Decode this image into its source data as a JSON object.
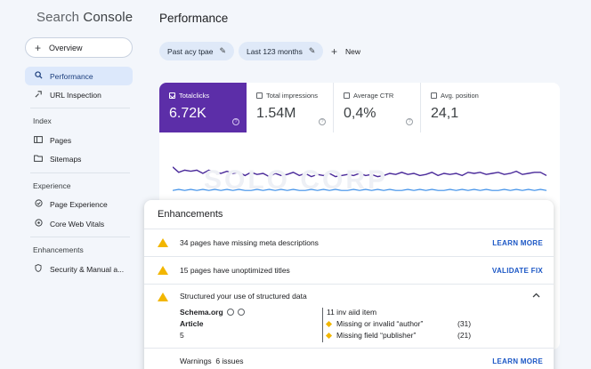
{
  "app": {
    "brand_part1": "Search",
    "brand_part2": " Console",
    "page_title": "Performance"
  },
  "sidebar": {
    "overview_label": "Overview",
    "items": [
      {
        "label": "Performance",
        "icon": "search-icon",
        "active": true
      },
      {
        "label": "URL Inspection",
        "icon": "url-inspection-icon",
        "active": false
      }
    ],
    "index_label": "Index",
    "index_items": [
      {
        "label": "Pages",
        "icon": "pages-icon"
      },
      {
        "label": "Sitemaps",
        "icon": "sitemaps-icon"
      }
    ],
    "experience_label": "Experience",
    "experience_items": [
      {
        "label": "Page Experience",
        "icon": "page-experience-icon"
      },
      {
        "label": "Core Web Vitals",
        "icon": "core-web-vitals-icon"
      }
    ],
    "enhancements_label": "Enhancements",
    "enhancements_items": [
      {
        "label": "Security & Manual a...",
        "icon": "shield-icon"
      }
    ]
  },
  "filters": {
    "chip1": "Past acy tpae",
    "chip2": "Last 123 months",
    "new_label": "New"
  },
  "metrics": [
    {
      "label": "Totalclicks",
      "value": "6.72K",
      "selected": true
    },
    {
      "label": "Total impressions",
      "value": "1.54M",
      "selected": false
    },
    {
      "label": "Average CTR",
      "value": "0,4%",
      "selected": false
    },
    {
      "label": "Avg. position",
      "value": "24,1",
      "selected": false
    }
  ],
  "watermark": "SOLO CORP",
  "chart_data": {
    "type": "line",
    "series": [
      {
        "color": "#4a2a9a",
        "values": [
          36,
          31,
          33,
          32,
          33,
          30,
          33,
          31,
          30,
          32,
          30,
          31,
          28,
          31,
          29,
          30,
          27,
          30,
          28,
          29,
          31,
          28,
          30,
          27,
          29,
          28,
          30,
          27,
          28,
          29,
          28,
          30,
          28,
          29,
          27,
          28,
          30,
          29,
          31,
          29,
          30,
          28,
          29,
          31,
          28,
          30,
          29,
          30,
          28,
          31,
          30,
          31,
          29,
          30,
          31,
          29,
          30,
          32,
          29,
          30,
          31,
          31,
          28
        ]
      },
      {
        "color": "#3b8ee8",
        "values": [
          14,
          15,
          14,
          15,
          14,
          15,
          14,
          15,
          14,
          15,
          14,
          15,
          14,
          14,
          15,
          14,
          15,
          14,
          15,
          14,
          15,
          14,
          14,
          15,
          14,
          15,
          14,
          15,
          14,
          14,
          15,
          14,
          15,
          14,
          15,
          14,
          15,
          14,
          14,
          15,
          14,
          15,
          14,
          15,
          14,
          14,
          15,
          14,
          15,
          14,
          15,
          14,
          15,
          14,
          14,
          15,
          14,
          15,
          14,
          15,
          14,
          15,
          14
        ]
      }
    ],
    "ylim": [
      0,
      50
    ]
  },
  "enhancements": {
    "title": "Enhancements",
    "rows": [
      {
        "text": "34 pages have missing meta descriptions",
        "link": "LEARN MORE"
      },
      {
        "text": "15 pages have unoptimized titles",
        "link": "VALIDATE FIX"
      },
      {
        "text": "Structured your use of structured data"
      }
    ],
    "schema_name": "Schema.org",
    "article_label": "Article",
    "article_count": "5",
    "issues_head": "11 inv aiid item",
    "issues": [
      {
        "text": "Missing or invalid “author”",
        "count": "(31)"
      },
      {
        "text": "Missing field “publisher”",
        "count": "(21)"
      }
    ],
    "warnings_label": "Warnings",
    "warnings_count": "6 issues",
    "warnings_link": "LEARN MORE"
  }
}
